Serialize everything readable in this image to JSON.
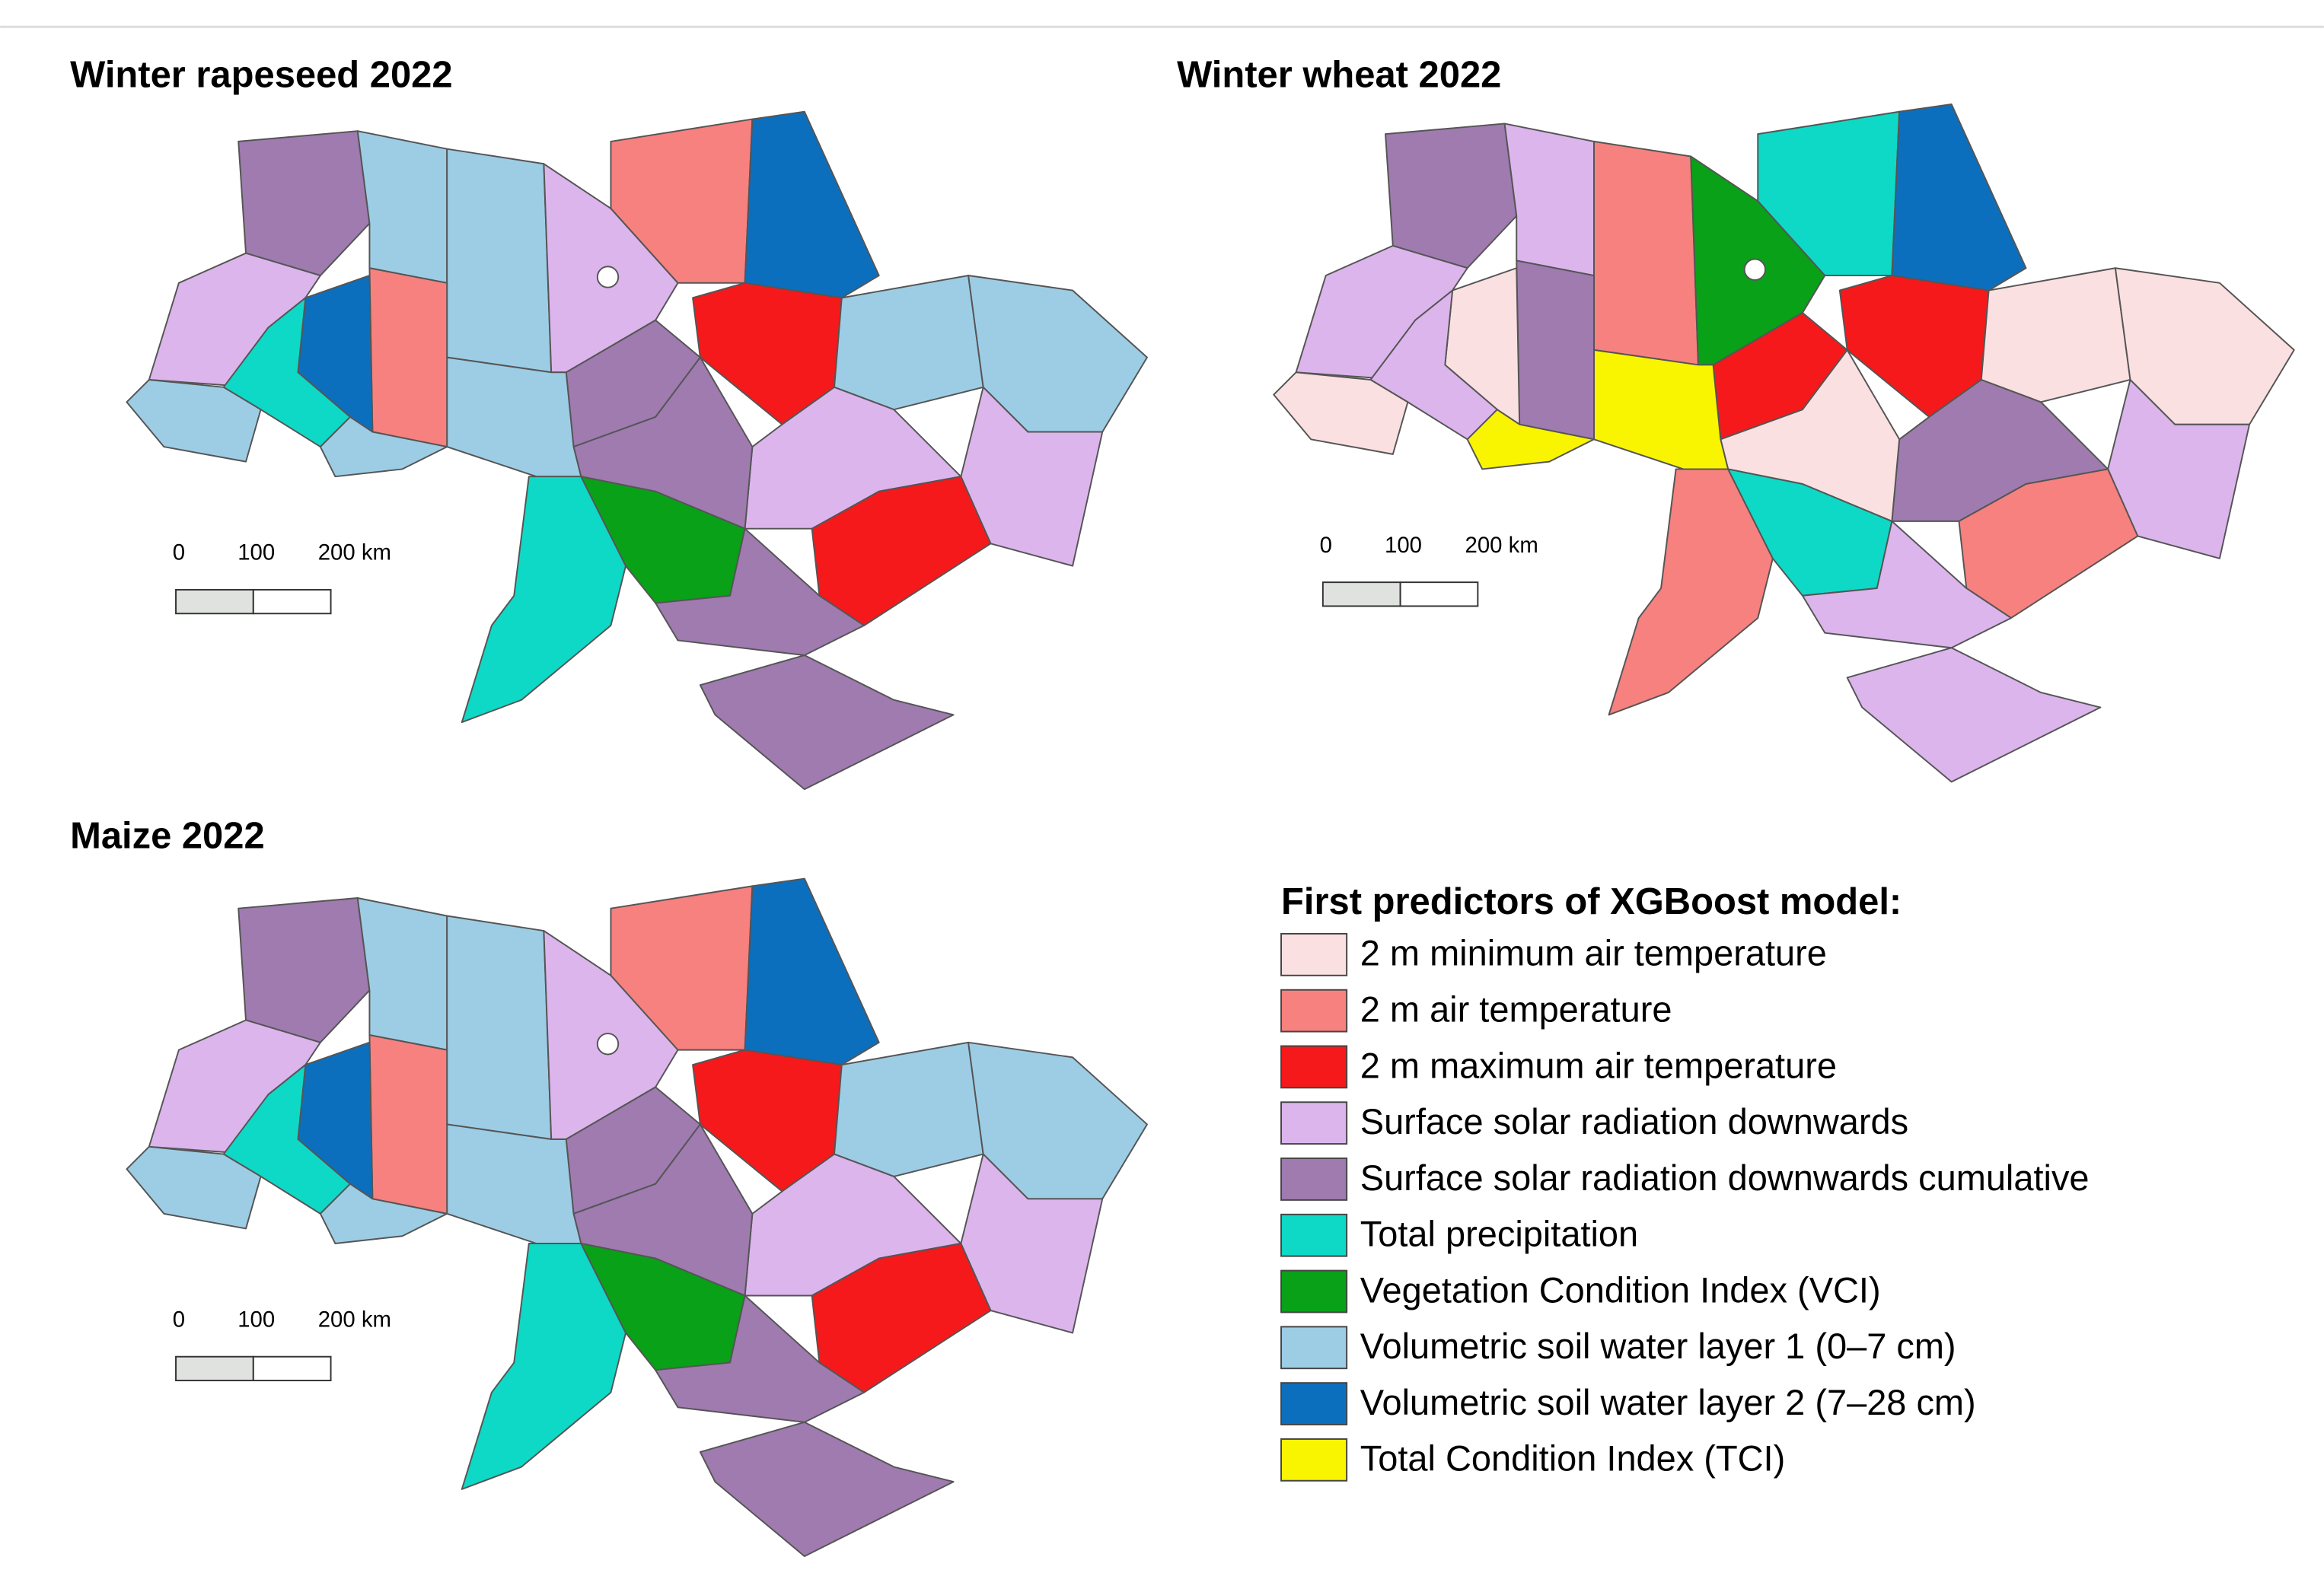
{
  "maps": [
    {
      "title": "Winter rapeseed 2022",
      "scale_labels": [
        "0",
        "100",
        "200 km"
      ]
    },
    {
      "title": "Winter wheat 2022",
      "scale_labels": [
        "0",
        "100",
        "200 km"
      ]
    },
    {
      "title": "Maize 2022",
      "scale_labels": [
        "0",
        "100",
        "200 km"
      ]
    }
  ],
  "legend": {
    "title": "First predictors of XGBoost model:",
    "items": [
      {
        "label": "2 m minimum air temperature",
        "color": "#fbe0e2"
      },
      {
        "label": "2 m air temperature",
        "color": "#f6817f"
      },
      {
        "label": "2 m maximum air temperature",
        "color": "#f5191b"
      },
      {
        "label": "Surface solar radiation downwards",
        "color": "#dcb5ec"
      },
      {
        "label": "Surface solar radiation downwards cumulative",
        "color": "#9f7bb0"
      },
      {
        "label": "Total precipitation",
        "color": "#0ed9c6"
      },
      {
        "label": "Vegetation Condition Index (VCI)",
        "color": "#08a117"
      },
      {
        "label": "Volumetric soil water layer 1 (0–7 cm)",
        "color": "#9dcde4"
      },
      {
        "label": "Volumetric soil water layer 2  (7–28 cm)",
        "color": "#0c6fbd"
      },
      {
        "label": "Total Condition Index (TCI)",
        "color": "#f9f500"
      }
    ]
  }
}
